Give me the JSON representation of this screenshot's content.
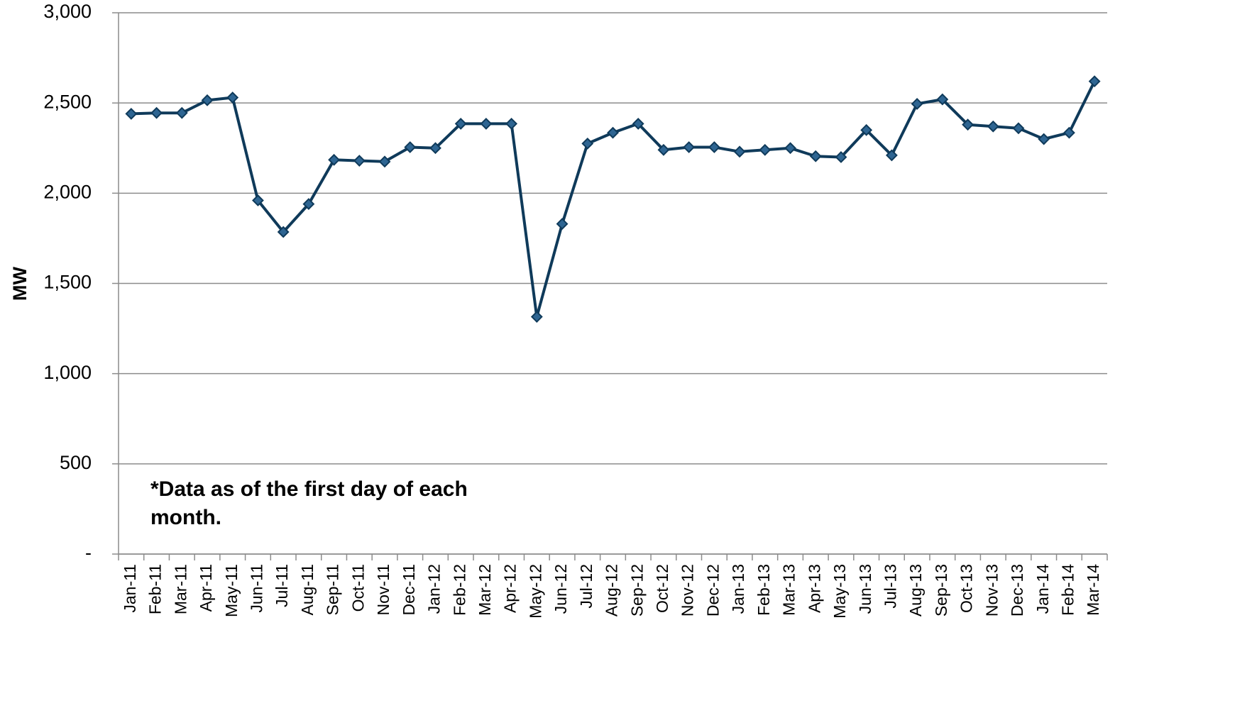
{
  "chart_data": {
    "type": "line",
    "y_label": "MW",
    "annotation": "*Data as of the first day of each month.",
    "categories": [
      "Jan-11",
      "Feb-11",
      "Mar-11",
      "Apr-11",
      "May-11",
      "Jun-11",
      "Jul-11",
      "Aug-11",
      "Sep-11",
      "Oct-11",
      "Nov-11",
      "Dec-11",
      "Jan-12",
      "Feb-12",
      "Mar-12",
      "Apr-12",
      "May-12",
      "Jun-12",
      "Jul-12",
      "Aug-12",
      "Sep-12",
      "Oct-12",
      "Nov-12",
      "Dec-12",
      "Jan-13",
      "Feb-13",
      "Mar-13",
      "Apr-13",
      "May-13",
      "Jun-13",
      "Jul-13",
      "Aug-13",
      "Sep-13",
      "Oct-13",
      "Nov-13",
      "Dec-13",
      "Jan-14",
      "Feb-14",
      "Mar-14"
    ],
    "values": [
      2440,
      2445,
      2445,
      2515,
      2530,
      1960,
      1785,
      1940,
      2185,
      2180,
      2175,
      2255,
      2250,
      2385,
      2385,
      2385,
      1315,
      1830,
      2275,
      2335,
      2385,
      2240,
      2255,
      2255,
      2230,
      2240,
      2250,
      2205,
      2200,
      2350,
      2210,
      2495,
      2520,
      2380,
      2370,
      2360,
      2300,
      2335,
      2620
    ],
    "color": "#0f3a5a",
    "marker_color": "#2e6592",
    "ylim": [
      0,
      3000
    ],
    "yticks": [
      {
        "value": 0,
        "label": "-"
      },
      500,
      {
        "value": 1000,
        "label": "1,000"
      },
      {
        "value": 1500,
        "label": "1,500"
      },
      {
        "value": 2000,
        "label": "2,000"
      },
      {
        "value": 2500,
        "label": "2,500"
      },
      {
        "value": 3000,
        "label": "3,000"
      }
    ],
    "grid": true
  }
}
